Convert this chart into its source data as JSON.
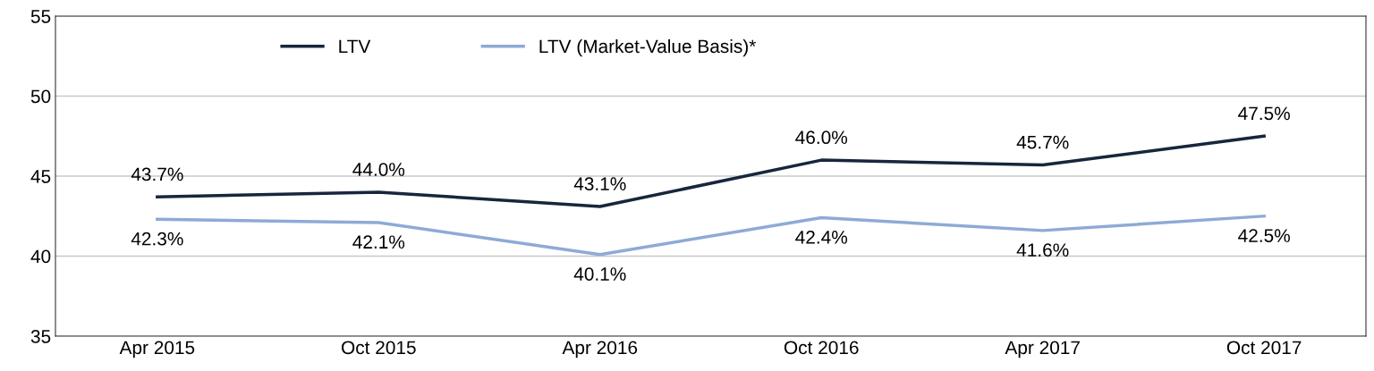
{
  "chart_data": {
    "type": "line",
    "categories": [
      "Apr 2015",
      "Oct 2015",
      "Apr 2016",
      "Oct 2016",
      "Apr 2017",
      "Oct 2017"
    ],
    "series": [
      {
        "name": "LTV",
        "color": "#17263c",
        "values": [
          43.7,
          44.0,
          43.1,
          46.0,
          45.7,
          47.5
        ],
        "value_labels": [
          "43.7%",
          "44.0%",
          "43.1%",
          "46.0%",
          "45.7%",
          "47.5%"
        ]
      },
      {
        "name": "LTV (Market-Value Basis)*",
        "color": "#8eaad6",
        "values": [
          42.3,
          42.1,
          40.1,
          42.4,
          41.6,
          42.5
        ],
        "value_labels": [
          "42.3%",
          "42.1%",
          "40.1%",
          "42.4%",
          "41.6%",
          "42.5%"
        ]
      }
    ],
    "ylim": [
      35,
      55
    ],
    "yticks": [
      35,
      40,
      45,
      50,
      55
    ],
    "grid": "y",
    "legend": "top left",
    "marker": "none",
    "line_style": "solid"
  }
}
